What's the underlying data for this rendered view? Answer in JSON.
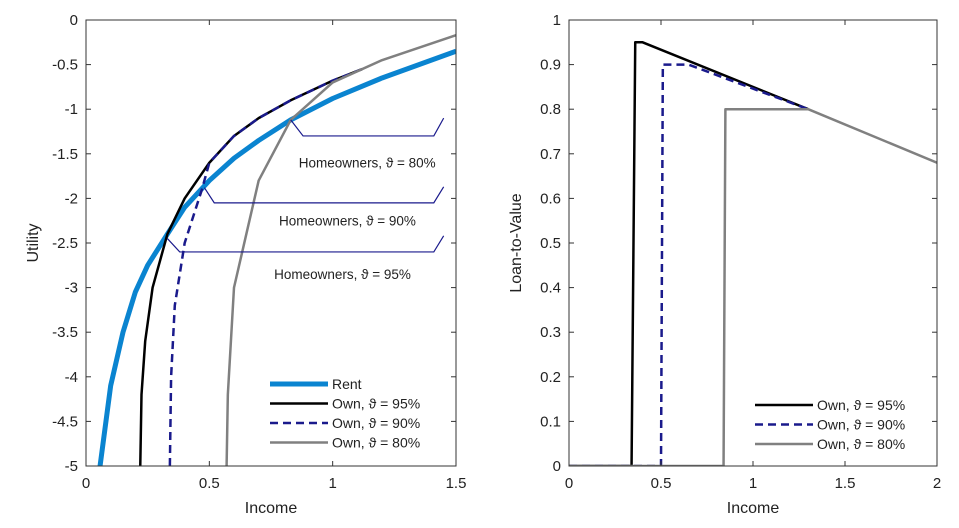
{
  "chart_data": [
    {
      "type": "line",
      "xlabel": "Income",
      "ylabel": "Utility",
      "xlim": [
        0,
        1.5
      ],
      "ylim": [
        -5,
        0
      ],
      "xticks": [
        0,
        0.5,
        1,
        1.5
      ],
      "xtick_labels": [
        "0",
        "0.5",
        "1",
        "1.5"
      ],
      "yticks": [
        0,
        -0.5,
        -1,
        -1.5,
        -2,
        -2.5,
        -3,
        -3.5,
        -4,
        -4.5,
        -5
      ],
      "ytick_labels": [
        "0",
        "-0.5",
        "-1",
        "-1.5",
        "-2",
        "-2.5",
        "-3",
        "-3.5",
        "-4",
        "-4.5",
        "-5"
      ],
      "legend_position": "bottom-right",
      "series": [
        {
          "name": "Rent",
          "color": "#0a84d0",
          "style": "solid",
          "width": 5,
          "x": [
            0.057,
            0.1,
            0.15,
            0.2,
            0.25,
            0.33,
            0.4,
            0.5,
            0.6,
            0.7,
            0.83,
            1.0,
            1.2,
            1.5
          ],
          "y": [
            -5,
            -4.1,
            -3.5,
            -3.05,
            -2.75,
            -2.4,
            -2.1,
            -1.8,
            -1.55,
            -1.35,
            -1.12,
            -0.88,
            -0.65,
            -0.35
          ]
        },
        {
          "name": "Own, ϑ = 95%",
          "color": "#000000",
          "style": "solid",
          "width": 2.5,
          "x": [
            0.22,
            0.225,
            0.24,
            0.27,
            0.33,
            0.4,
            0.5,
            0.6,
            0.7,
            0.83,
            1.0,
            1.12
          ],
          "y": [
            -5,
            -4.2,
            -3.6,
            -3.0,
            -2.4,
            -2.0,
            -1.6,
            -1.3,
            -1.1,
            -0.9,
            -0.68,
            -0.55
          ]
        },
        {
          "name": "Own, ϑ = 90%",
          "color": "#1a1a8c",
          "style": "dashed",
          "width": 2.5,
          "x": [
            0.34,
            0.345,
            0.36,
            0.4,
            0.47,
            0.5,
            0.6,
            0.7,
            0.83,
            1.0,
            1.12
          ],
          "y": [
            -5,
            -4,
            -3.2,
            -2.5,
            -1.9,
            -1.6,
            -1.3,
            -1.1,
            -0.9,
            -0.68,
            -0.55
          ]
        },
        {
          "name": "Own, ϑ = 80%",
          "color": "#808080",
          "style": "solid",
          "width": 2.5,
          "x": [
            0.57,
            0.575,
            0.6,
            0.65,
            0.7,
            0.83,
            1.0,
            1.2,
            1.5
          ],
          "y": [
            -5,
            -4.2,
            -3.0,
            -2.4,
            -1.8,
            -1.12,
            -0.7,
            -0.45,
            -0.17
          ]
        }
      ],
      "annotations": [
        {
          "text": "Homeowners, ϑ = 80%",
          "points": [
            [
              0.83,
              -1.12
            ],
            [
              0.88,
              -1.3
            ],
            [
              1.41,
              -1.3
            ],
            [
              1.45,
              -1.1
            ]
          ],
          "tx": 1.14,
          "ty": -1.6
        },
        {
          "text": "Homeowners, ϑ = 90%",
          "points": [
            [
              0.48,
              -1.88
            ],
            [
              0.52,
              -2.05
            ],
            [
              1.41,
              -2.05
            ],
            [
              1.45,
              -1.87
            ]
          ],
          "tx": 1.06,
          "ty": -2.25
        },
        {
          "text": "Homeowners, ϑ = 95%",
          "points": [
            [
              0.33,
              -2.45
            ],
            [
              0.38,
              -2.6
            ],
            [
              1.41,
              -2.6
            ],
            [
              1.45,
              -2.42
            ]
          ],
          "tx": 1.04,
          "ty": -2.85
        }
      ]
    },
    {
      "type": "line",
      "xlabel": "Income",
      "ylabel": "Loan-to-Value",
      "xlim": [
        0,
        2
      ],
      "ylim": [
        0,
        1
      ],
      "xticks": [
        0,
        0.5,
        1,
        1.5,
        2
      ],
      "xtick_labels": [
        "0",
        "0.5",
        "1",
        "1.5",
        "2"
      ],
      "yticks": [
        0,
        0.1,
        0.2,
        0.3,
        0.4,
        0.5,
        0.6,
        0.7,
        0.8,
        0.9,
        1
      ],
      "ytick_labels": [
        "0",
        "0.1",
        "0.2",
        "0.3",
        "0.4",
        "0.5",
        "0.6",
        "0.7",
        "0.8",
        "0.9",
        "1"
      ],
      "legend_position": "bottom-right",
      "series": [
        {
          "name": "Own, ϑ = 95%",
          "color": "#000000",
          "style": "solid",
          "width": 2.5,
          "x": [
            0,
            0.34,
            0.36,
            0.4,
            1.3
          ],
          "y": [
            0,
            0,
            0.95,
            0.95,
            0.8
          ]
        },
        {
          "name": "Own, ϑ = 90%",
          "color": "#1a1a8c",
          "style": "dashed",
          "width": 2.5,
          "x": [
            0,
            0.5,
            0.51,
            0.65,
            1.3
          ],
          "y": [
            0,
            0,
            0.9,
            0.9,
            0.8
          ]
        },
        {
          "name": "Own, ϑ = 80%",
          "color": "#808080",
          "style": "solid",
          "width": 2.5,
          "x": [
            0,
            0.84,
            0.85,
            1.3,
            2.0
          ],
          "y": [
            0,
            0,
            0.8,
            0.8,
            0.68
          ]
        }
      ],
      "annotations": []
    }
  ]
}
